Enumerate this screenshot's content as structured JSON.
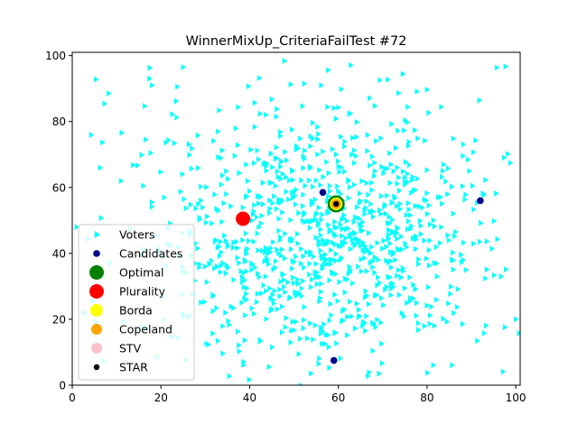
{
  "chart_data": {
    "type": "scatter",
    "title": "WinnerMixUp_CriteriaFailTest #72",
    "xlabel": "",
    "ylabel": "",
    "xlim": [
      0,
      101
    ],
    "ylim": [
      0,
      101
    ],
    "x_ticks": [
      0,
      20,
      40,
      60,
      80,
      100
    ],
    "y_ticks": [
      0,
      20,
      40,
      60,
      80,
      100
    ],
    "grid": false,
    "legend_position": "lower-left",
    "voters": {
      "name": "Voters",
      "marker": "triangle-right",
      "color": "#00ffff",
      "count_approx": 1000,
      "distribution": "dense cluster centered near (55, 45), spread roughly 20 units per axis, sparse points across full range"
    },
    "series": [
      {
        "name": "Voters",
        "marker": "triangle-right",
        "color": "#00ffff"
      },
      {
        "name": "Candidates",
        "marker": "circle",
        "color": "#00008b",
        "points": [
          [
            56.5,
            58.5
          ],
          [
            92,
            56
          ],
          [
            59,
            7.5
          ],
          [
            59.5,
            55
          ]
        ]
      },
      {
        "name": "Optimal",
        "marker": "circle",
        "color": "#008000",
        "points": [
          [
            59.5,
            55
          ]
        ]
      },
      {
        "name": "Plurality",
        "marker": "circle",
        "color": "#ff0000",
        "points": [
          [
            38.5,
            50.5
          ]
        ]
      },
      {
        "name": "Borda",
        "marker": "circle",
        "color": "#ffff00",
        "points": [
          [
            59.5,
            55
          ]
        ]
      },
      {
        "name": "Copeland",
        "marker": "circle",
        "color": "#ffa500",
        "points": [
          [
            59.5,
            55
          ]
        ]
      },
      {
        "name": "STV",
        "marker": "circle",
        "color": "#ffc0cb",
        "points": []
      },
      {
        "name": "STAR",
        "marker": "circle",
        "color": "#000000",
        "points": [
          [
            59.5,
            55
          ]
        ]
      }
    ]
  }
}
